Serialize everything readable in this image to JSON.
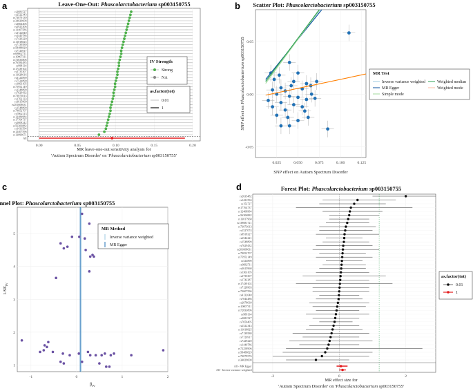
{
  "panels": {
    "a": "a",
    "b": "b",
    "c": "c",
    "d": "d"
  },
  "colors": {
    "green": "#4daf4a",
    "red": "#e41a1c",
    "blue": "#2171b5",
    "purple": "#6a51a3",
    "orange": "#ff7f00",
    "ivw": "#9ecae1",
    "egger": "#08519c",
    "simple": "#a1d99b",
    "wmedian": "#31a354",
    "wmode": "#fcbba1"
  },
  "chart_data": [
    {
      "id": "a",
      "type": "scatter",
      "title_prefix": "Leave-One-Out: ",
      "title_italic": "Phascolarctobacterium",
      "title_suffix": " sp003150755",
      "xlabel_line1": "MR leave-one-out sensitivity analysis for",
      "xlabel_line2_prefix": "'Autism Spectrum Disorder' on '",
      "xlabel_line2_italic": "Phascolarctobacterium",
      "xlabel_line2_suffix": " sp003150755'",
      "xlim": [
        -0.015,
        0.21
      ],
      "xticks": [
        "0.00",
        "0.05",
        "0.10",
        "0.15",
        "0.20"
      ],
      "xtick_values": [
        0,
        0.05,
        0.1,
        0.15,
        0.2
      ],
      "all_label": "All",
      "all_estimate": 0.095,
      "all_ci": [
        0.0,
        0.19
      ],
      "snps": [
        "rs2681527",
        "rs2522343",
        "rs73079139",
        "rs34029608",
        "rs3664406",
        "rs2925306",
        "rs11407586",
        "rs3722840",
        "rs1440786",
        "rs7429220",
        "rs11018825",
        "rs7139580",
        "rs58488829",
        "rs7726917",
        "rs68662711",
        "rs10007311",
        "rs72833806",
        "rs76584485",
        "rs998134",
        "rs17439102",
        "rs2735307",
        "rs11628616",
        "rs3124890",
        "rs7524890",
        "rs1663105",
        "rs75952149",
        "rs1348899",
        "rs7629432",
        "rs73073013",
        "rs1762133",
        "rs3615960",
        "rs201608631",
        "rs1548899",
        "rs79052707",
        "rs7062113",
        "rs12484984",
        "rs17764737",
        "rs2608242",
        "rs56306882",
        "rs1431594",
        "rs12407596",
        "rs13090671"
      ],
      "estimates": [
        0.12,
        0.119,
        0.118,
        0.117,
        0.116,
        0.115,
        0.114,
        0.113,
        0.112,
        0.111,
        0.11,
        0.109,
        0.108,
        0.107,
        0.107,
        0.106,
        0.105,
        0.104,
        0.104,
        0.103,
        0.102,
        0.102,
        0.101,
        0.1,
        0.099,
        0.099,
        0.098,
        0.097,
        0.097,
        0.096,
        0.095,
        0.094,
        0.093,
        0.093,
        0.092,
        0.091,
        0.09,
        0.089,
        0.088,
        0.087,
        0.085,
        0.078
      ],
      "ci_low": [
        0.0,
        0.0,
        0.0,
        0.0,
        0.0,
        0.0,
        0.0,
        0.0,
        0.0,
        0.0,
        0.0,
        0.0,
        0.0,
        0.0,
        0.0,
        0.0,
        0.0,
        0.0,
        0.0,
        0.0,
        0.0,
        0.0,
        0.0,
        0.0,
        0.0,
        0.0,
        0.0,
        0.0,
        0.0,
        0.0,
        0.0,
        0.0,
        0.0,
        0.0,
        0.0,
        0.0,
        0.0,
        0.0,
        0.0,
        0.0,
        0.0,
        0.0
      ],
      "ci_high": [
        0.2,
        0.2,
        0.2,
        0.2,
        0.2,
        0.2,
        0.2,
        0.2,
        0.2,
        0.2,
        0.2,
        0.2,
        0.2,
        0.2,
        0.2,
        0.2,
        0.2,
        0.2,
        0.2,
        0.2,
        0.2,
        0.2,
        0.2,
        0.2,
        0.2,
        0.2,
        0.2,
        0.2,
        0.2,
        0.2,
        0.2,
        0.2,
        0.2,
        0.2,
        0.2,
        0.2,
        0.2,
        0.2,
        0.2,
        0.2,
        0.2,
        0.2
      ],
      "legend_iv_title": "IV Strength",
      "legend_iv_items": [
        "Strong",
        "NA"
      ],
      "legend_factor_title": "as.factor(tot)",
      "legend_factor_items": [
        "0.01",
        "1"
      ]
    },
    {
      "id": "b",
      "type": "scatter",
      "title_prefix": "Scatter Plot: ",
      "title_italic": "Phascolarctobacterium",
      "title_suffix": " sp003150755",
      "xlabel": "SNP effect on Autism Spectrum Disorder",
      "ylabel_prefix": "SNP effect on ",
      "ylabel_italic": "Phascolarctobacterium",
      "ylabel_suffix": " sp003150755",
      "xlim": [
        0.0,
        0.13
      ],
      "ylim": [
        -0.06,
        0.08
      ],
      "xticks": [
        "0.025",
        "0.050",
        "0.075",
        "0.100",
        "0.125"
      ],
      "xtick_values": [
        0.025,
        0.05,
        0.075,
        0.1,
        0.125
      ],
      "yticks": [
        "-0.05",
        "0.00",
        "0.05"
      ],
      "ytick_values": [
        -0.05,
        0,
        0.05
      ],
      "points": [
        [
          0.11,
          0.058
        ],
        [
          0.085,
          -0.033
        ],
        [
          0.04,
          0.03
        ],
        [
          0.05,
          0.02
        ],
        [
          0.045,
          0.012
        ],
        [
          0.06,
          0.01
        ],
        [
          0.065,
          0.008
        ],
        [
          0.055,
          0.005
        ],
        [
          0.03,
          0.006
        ],
        [
          0.035,
          0.003
        ],
        [
          0.02,
          0.004
        ],
        [
          0.025,
          0.0
        ],
        [
          0.04,
          -0.002
        ],
        [
          0.05,
          -0.003
        ],
        [
          0.06,
          -0.005
        ],
        [
          0.07,
          -0.004
        ],
        [
          0.03,
          -0.008
        ],
        [
          0.045,
          -0.01
        ],
        [
          0.055,
          -0.012
        ],
        [
          0.035,
          -0.015
        ],
        [
          0.025,
          -0.02
        ],
        [
          0.05,
          -0.025
        ],
        [
          0.03,
          -0.03
        ],
        [
          0.04,
          -0.03
        ],
        [
          0.062,
          -0.022
        ],
        [
          0.02,
          -0.012
        ],
        [
          0.018,
          0.02
        ],
        [
          0.022,
          0.014
        ],
        [
          0.028,
          0.018
        ],
        [
          0.015,
          -0.006
        ],
        [
          0.042,
          0.008
        ],
        [
          0.066,
          0.0
        ],
        [
          0.072,
          0.012
        ],
        [
          0.038,
          -0.022
        ],
        [
          0.058,
          -0.016
        ]
      ],
      "lines": [
        {
          "name": "Inverse variance weighted",
          "slope": 1.05,
          "intercept": 0
        },
        {
          "name": "MR Egger",
          "slope": 1.0,
          "intercept": 0.002
        },
        {
          "name": "Simple mode",
          "slope": 1.1,
          "intercept": -0.003
        },
        {
          "name": "Weighted median",
          "slope": 1.08,
          "intercept": -0.001
        },
        {
          "name": "Weighted mode",
          "slope": 0.17,
          "intercept": -0.003
        }
      ],
      "legend_title": "MR Test",
      "legend_items": [
        "Inverse variance weighted",
        "MR Egger",
        "Simple mode",
        "Weighted median",
        "Weighted mode"
      ]
    },
    {
      "id": "c",
      "type": "scatter",
      "title_prefix": "Funnel Plot: ",
      "title_italic": "Phascolarctobacterium",
      "title_suffix": " sp003150755",
      "xlabel": "β",
      "xlabel_sub": "IV",
      "ylabel": "1/SE",
      "ylabel_sub": "IV",
      "xlim": [
        -1.3,
        2.0
      ],
      "ylim": [
        0.8,
        5.8
      ],
      "xticks": [
        "-1",
        "0",
        "1",
        "2"
      ],
      "xtick_values": [
        -1,
        0,
        1,
        2
      ],
      "yticks": [
        "1",
        "2",
        "3",
        "4",
        "5"
      ],
      "ytick_values": [
        1,
        2,
        3,
        4,
        5
      ],
      "points": [
        [
          0.12,
          5.6
        ],
        [
          0.28,
          5.3
        ],
        [
          0.5,
          5.1
        ],
        [
          -0.1,
          4.9
        ],
        [
          0.06,
          4.9
        ],
        [
          0.18,
          4.85
        ],
        [
          -0.35,
          4.7
        ],
        [
          -0.2,
          4.6
        ],
        [
          -0.28,
          4.55
        ],
        [
          0.2,
          4.5
        ],
        [
          0.35,
          4.35
        ],
        [
          0.3,
          4.3
        ],
        [
          0.38,
          4.3
        ],
        [
          -0.45,
          3.65
        ],
        [
          0.28,
          3.85
        ],
        [
          -1.2,
          1.75
        ],
        [
          -0.62,
          1.7
        ],
        [
          -0.7,
          1.6
        ],
        [
          -0.65,
          1.55
        ],
        [
          -0.72,
          1.45
        ],
        [
          -0.8,
          1.4
        ],
        [
          -0.52,
          1.4
        ],
        [
          -0.3,
          1.35
        ],
        [
          -0.15,
          1.3
        ],
        [
          0.05,
          1.35
        ],
        [
          0.25,
          1.4
        ],
        [
          0.3,
          1.3
        ],
        [
          0.42,
          1.3
        ],
        [
          0.55,
          1.3
        ],
        [
          0.62,
          1.35
        ],
        [
          0.75,
          1.3
        ],
        [
          0.82,
          1.35
        ],
        [
          1.2,
          1.3
        ],
        [
          1.9,
          1.45
        ],
        [
          -0.35,
          1.1
        ],
        [
          -0.28,
          1.05
        ],
        [
          0.12,
          1.1
        ],
        [
          0.5,
          1.05
        ],
        [
          0.65,
          0.95
        ],
        [
          0.72,
          0.95
        ]
      ],
      "ivw_x": 0.1,
      "egger_x": 0.08,
      "legend_title": "MR Method",
      "legend_items": [
        "Inverse variance weighted",
        "MR Egger"
      ]
    },
    {
      "id": "d",
      "type": "scatter",
      "title_prefix": "Forest Plot: ",
      "title_italic": "Phascolarctobacterium",
      "title_suffix": " sp003150755",
      "xlabel_line1": "MR effect size for",
      "xlabel_line2_prefix": "'Autism Spectrum Disorder' on '",
      "xlabel_line2_italic": "Phascolarctobacterium",
      "xlabel_line2_suffix": " sp003150755'",
      "xlim": [
        -2.6,
        2.9
      ],
      "xticks": [
        "-2",
        "0",
        "2"
      ],
      "xtick_values": [
        -2,
        0,
        2
      ],
      "snps": [
        "rs2635482",
        "rs1431594",
        "rs152727",
        "rs17764737",
        "rs12408984",
        "rs56306882",
        "rs13017968",
        "rs139681721",
        "rs73073013",
        "rs1527074",
        "rs8918327",
        "rs6542221",
        "rs1548899",
        "rs7629432",
        "rs201608631",
        "rs79052707",
        "rs75952149",
        "rs524890",
        "rs6682711",
        "rs3615960",
        "rs1363105",
        "rs2735307",
        "rs1742387",
        "rs17439102",
        "rs7128963",
        "rs72607596",
        "rs4132640",
        "rs7044486",
        "rs2078039",
        "rs10007311",
        "rs72833806",
        "rs989134",
        "rs2681527",
        "rs7650405",
        "rs2522343",
        "rs11018825",
        "rs7139580",
        "rs7726917",
        "rs7429220",
        "rs1440786",
        "rs72258906",
        "rs58488829",
        "rs73079576",
        "rs34029608"
      ],
      "estimates": [
        2.0,
        0.55,
        0.45,
        0.35,
        0.32,
        0.3,
        0.27,
        0.24,
        0.2,
        0.18,
        0.16,
        0.15,
        0.14,
        0.12,
        0.11,
        0.1,
        0.09,
        0.08,
        0.07,
        0.06,
        0.05,
        0.04,
        0.03,
        0.02,
        0.01,
        0.0,
        -0.01,
        -0.02,
        -0.04,
        -0.06,
        -0.08,
        -0.1,
        -0.12,
        -0.14,
        -0.17,
        -0.2,
        -0.23,
        -0.26,
        -0.29,
        -0.32,
        -0.36,
        -0.42,
        -0.52,
        -0.7
      ],
      "ci_low": [
        1.0,
        -0.5,
        -0.6,
        -1.3,
        -0.5,
        -0.3,
        -0.3,
        -0.4,
        -0.6,
        -0.6,
        -0.7,
        -0.4,
        -0.5,
        -0.7,
        -0.8,
        -0.6,
        -0.7,
        -0.4,
        -0.5,
        -0.6,
        -0.7,
        -1.1,
        -0.7,
        -1.3,
        -0.8,
        -0.8,
        -0.6,
        -0.7,
        -0.9,
        -0.8,
        -0.7,
        -1.0,
        -0.8,
        -0.6,
        -0.9,
        -1.0,
        -1.4,
        -1.1,
        -1.5,
        -1.2,
        -1.6,
        -1.7,
        -2.0,
        -1.6
      ],
      "ci_high": [
        2.9,
        1.7,
        1.4,
        2.2,
        1.3,
        1.2,
        0.9,
        0.9,
        1.1,
        1.0,
        1.2,
        0.7,
        0.9,
        1.0,
        1.2,
        0.8,
        1.0,
        0.7,
        0.8,
        0.8,
        0.9,
        1.4,
        0.9,
        1.6,
        0.9,
        0.9,
        0.6,
        0.7,
        0.9,
        0.8,
        0.6,
        0.9,
        0.6,
        0.4,
        0.6,
        0.7,
        0.9,
        0.6,
        1.0,
        0.6,
        2.5,
        1.0,
        0.9,
        0.3
      ],
      "summary_labels": [
        "All - MR Egger",
        "All - Inverse variance weighted"
      ],
      "summary_estimates": [
        0.05,
        0.1
      ],
      "summary_ci": [
        [
          -0.08,
          0.25
        ],
        [
          0.0,
          0.2
        ]
      ],
      "legend_title": "as.factor(tot)",
      "legend_items": [
        "0.01",
        "1"
      ]
    }
  ]
}
